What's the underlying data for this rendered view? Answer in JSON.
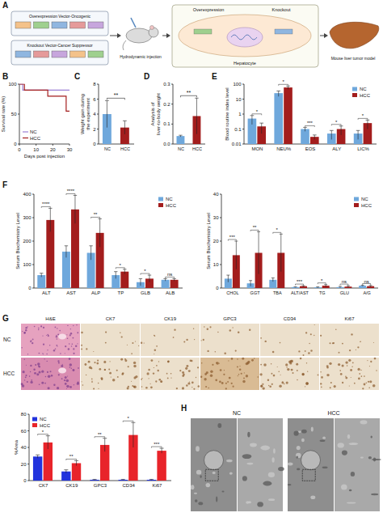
{
  "diagram": {
    "panel": "A",
    "vectors": [
      "Overexpression Vector-Oncogenic",
      "Knockout Vector-Cancer Suppressor"
    ],
    "injection": "Hydrodynamic injection",
    "processes": [
      "Overexpression",
      "Knockout"
    ],
    "cell": "Hepatocyte",
    "result": "Mouse liver tumor model"
  },
  "chart_data": [
    {
      "panel": "B",
      "type": "line",
      "x_label": "Days post injection",
      "y_label": "Survival rate (%)",
      "series": [
        {
          "name": "NC",
          "color": "#9b7fd4",
          "x": [
            0,
            2,
            2,
            30
          ],
          "values": [
            100,
            100,
            90,
            90
          ]
        },
        {
          "name": "HCC",
          "color": "#a31d1d",
          "x": [
            0,
            3,
            3,
            17,
            17,
            28,
            28,
            30
          ],
          "values": [
            100,
            100,
            90,
            90,
            80,
            80,
            55,
            55
          ]
        }
      ],
      "xlim": [
        0,
        30
      ],
      "xticks": [
        0,
        10,
        20,
        30
      ],
      "ylim": [
        0,
        100
      ],
      "yticks": [
        0,
        50,
        100
      ],
      "legend": "bottom-left"
    },
    {
      "panel": "C",
      "type": "bar",
      "y_label": "Weight gain during the experiment",
      "categories": [
        "NC",
        "HCC"
      ],
      "values": [
        4.0,
        2.2
      ],
      "errors": [
        1.8,
        0.9
      ],
      "colors": [
        "#6fa8dc",
        "#a31d1d"
      ],
      "ylim": [
        0,
        8
      ],
      "yticks": [
        0,
        2,
        4,
        6,
        8
      ],
      "annotations": [
        "**"
      ]
    },
    {
      "panel": "D",
      "type": "bar",
      "y_label": "Analysis of liver-to-body weight",
      "categories": [
        "NC",
        "HCC"
      ],
      "values": [
        0.04,
        0.14
      ],
      "errors": [
        0.004,
        0.09
      ],
      "colors": [
        "#6fa8dc",
        "#a31d1d"
      ],
      "ylim": [
        0,
        0.3
      ],
      "yticks": [
        {
          "value": 0,
          "label": "0.0"
        },
        0.1,
        0.2,
        0.3
      ],
      "annotations": [
        "**"
      ]
    },
    {
      "panel": "E",
      "type": "bar",
      "y_label": "Blood routine index level",
      "log": "y",
      "categories": [
        "MON",
        "NEU%",
        "EOS",
        "ALY",
        "LIC%"
      ],
      "series": [
        {
          "name": "NC",
          "color": "#6fa8dc",
          "values": [
            0.5,
            25,
            0.1,
            0.05,
            0.05
          ],
          "errors": [
            0.3,
            10,
            0.03,
            0.03,
            0.03
          ]
        },
        {
          "name": "HCC",
          "color": "#a31d1d",
          "values": [
            0.15,
            60,
            0.03,
            0.1,
            0.25
          ],
          "errors": [
            0.1,
            15,
            0.01,
            0.06,
            0.15
          ]
        }
      ],
      "ylim": [
        0.01,
        100
      ],
      "yticks": [
        0.01,
        0.1,
        1,
        10,
        100
      ],
      "legend": "top-right",
      "annotations": [
        "*",
        "*",
        "***",
        "*",
        "*"
      ]
    },
    {
      "panel": "F",
      "type": "bar",
      "y_label": "Serum Biochemistry Level",
      "categories": [
        "ALT",
        "AST",
        "ALP",
        "TP",
        "GLB",
        "ALB"
      ],
      "series": [
        {
          "name": "NC",
          "color": "#6fa8dc",
          "values": [
            55,
            155,
            150,
            55,
            25,
            35
          ],
          "errors": [
            8,
            25,
            30,
            15,
            15,
            5
          ]
        },
        {
          "name": "HCC",
          "color": "#a31d1d",
          "values": [
            290,
            335,
            235,
            70,
            40,
            35
          ],
          "errors": [
            50,
            60,
            60,
            10,
            15,
            5
          ]
        }
      ],
      "ylim": [
        0,
        400
      ],
      "yticks": [
        0,
        100,
        200,
        300,
        400
      ],
      "legend": "top-right",
      "annotations": [
        "****",
        "****",
        "**",
        "*",
        "*",
        "ns"
      ]
    },
    {
      "type": "bar",
      "y_label": "Serum Biochemistry Level",
      "categories": [
        "CHOL",
        "GGT",
        "TBA",
        "ALT/AST",
        "TG",
        "GLU",
        "A/G"
      ],
      "series": [
        {
          "name": "NC",
          "color": "#6fa8dc",
          "values": [
            4,
            2,
            3.5,
            0.4,
            0.3,
            0.4,
            1.0
          ],
          "errors": [
            1.5,
            1.2,
            0.8,
            0.1,
            0.2,
            0.3,
            0.2
          ]
        },
        {
          "name": "HCC",
          "color": "#a31d1d",
          "values": [
            14,
            15,
            15,
            0.8,
            1.0,
            0.6,
            0.8
          ],
          "errors": [
            6,
            9,
            8,
            0.2,
            0.5,
            0.4,
            0.3
          ]
        }
      ],
      "ylim": [
        0,
        40
      ],
      "yticks": [
        0,
        10,
        20,
        30,
        40
      ],
      "legend": "top-right",
      "annotations": [
        "***",
        "**",
        "*",
        "***",
        "*",
        "ns",
        "ns"
      ]
    },
    {
      "type": "bar",
      "y_label": "%Area",
      "categories": [
        "CK7",
        "CK19",
        "GPC3",
        "CD34",
        "Ki67"
      ],
      "series": [
        {
          "name": "NC",
          "color": "#2233dd",
          "values": [
            29,
            11,
            1,
            1,
            1
          ],
          "errors": [
            2,
            2,
            0.5,
            0.5,
            0.5
          ]
        },
        {
          "name": "HCC",
          "color": "#e8242a",
          "values": [
            46,
            21,
            43,
            55,
            36
          ],
          "errors": [
            8,
            3,
            8,
            15,
            3
          ]
        }
      ],
      "ylim": [
        0,
        80
      ],
      "yticks": [
        0,
        20,
        40,
        60,
        80
      ],
      "legend": "top-left",
      "annotations": [
        "*",
        "**",
        "**",
        "*",
        "***"
      ]
    }
  ],
  "micrographs": {
    "panel": "G",
    "columns": [
      "H&E",
      "CK7",
      "CK19",
      "GPC3",
      "CD34",
      "Ki67"
    ],
    "rows": [
      "NC",
      "HCC"
    ]
  },
  "tem": {
    "panel": "H",
    "columns": [
      "NC",
      "HCC"
    ]
  }
}
